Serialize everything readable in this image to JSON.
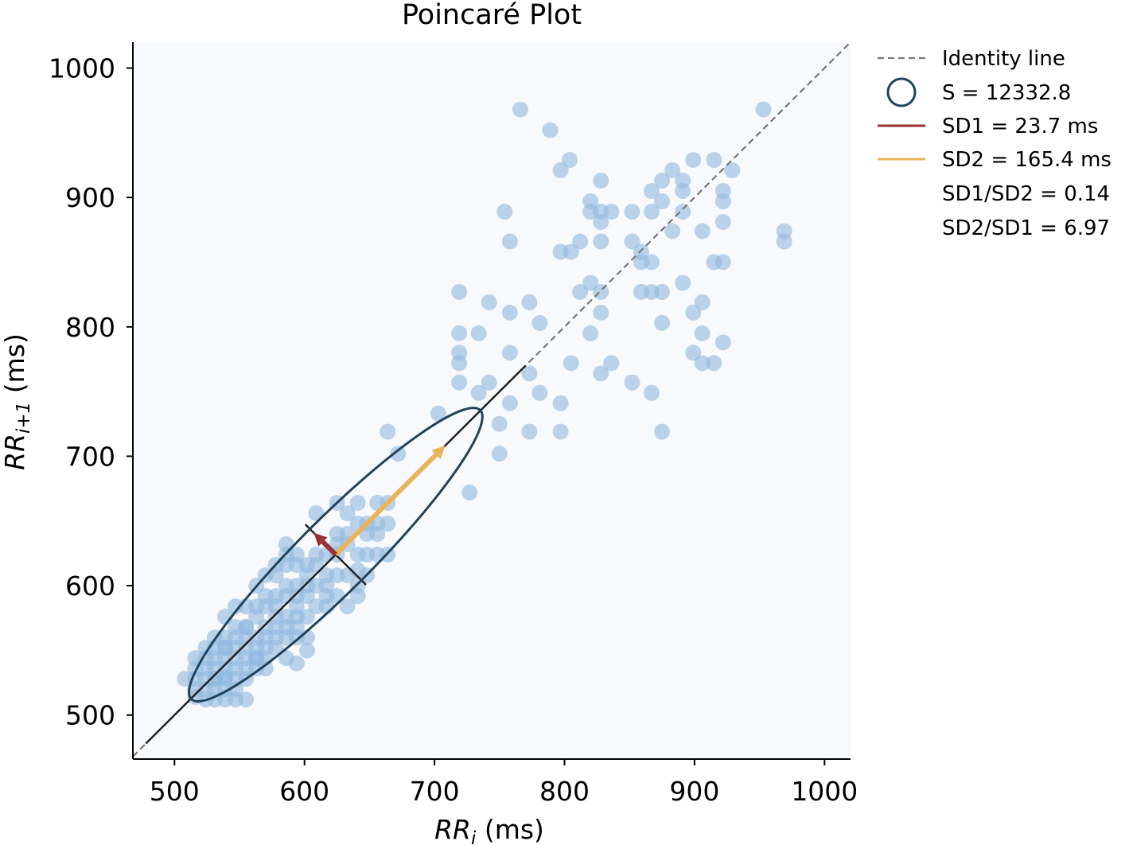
{
  "chart_data": {
    "type": "scatter",
    "title": "Poincaré Plot",
    "xlabel": {
      "main": "RR",
      "sub": "i",
      "unit": " (ms)"
    },
    "ylabel": {
      "main": "RR",
      "sub": "i+1",
      "unit": " (ms)"
    },
    "xlim": [
      468,
      1020
    ],
    "ylim": [
      466,
      1020
    ],
    "xticks": [
      500,
      600,
      700,
      800,
      900,
      1000
    ],
    "yticks": [
      500,
      600,
      700,
      800,
      900,
      1000
    ],
    "grid": false,
    "legend_position": "outside-right-top",
    "colors": {
      "points": "#8fb8de",
      "ellipse": "#1f4459",
      "sd1": "#9b2f33",
      "sd2": "#e8b55a",
      "axes_line": "#222222",
      "identity": "#777777",
      "plot_bg": "#f7f9fc"
    },
    "centroid": {
      "x": 624,
      "y": 624
    },
    "sd1": 23.7,
    "sd2": 165.4,
    "ellipse_area": 12332.8,
    "legend": [
      {
        "kind": "dashed",
        "label": "Identity line"
      },
      {
        "kind": "circle",
        "label": "S = 12332.8"
      },
      {
        "kind": "line-sd1",
        "label": "SD1 = 23.7 ms"
      },
      {
        "kind": "line-sd2",
        "label": "SD2 = 165.4 ms"
      },
      {
        "kind": "none",
        "label": "SD1/SD2 = 0.14"
      },
      {
        "kind": "none",
        "label": "SD2/SD1 = 6.97"
      }
    ],
    "points": [
      [
        766,
        968
      ],
      [
        953,
        968
      ],
      [
        789,
        952
      ],
      [
        797,
        921
      ],
      [
        804,
        929
      ],
      [
        899,
        929
      ],
      [
        915,
        929
      ],
      [
        929,
        921
      ],
      [
        883,
        921
      ],
      [
        875,
        913
      ],
      [
        828,
        913
      ],
      [
        891,
        913
      ],
      [
        867,
        905
      ],
      [
        891,
        905
      ],
      [
        922,
        905
      ],
      [
        820,
        897
      ],
      [
        875,
        897
      ],
      [
        922,
        897
      ],
      [
        828,
        889
      ],
      [
        836,
        889
      ],
      [
        852,
        889
      ],
      [
        867,
        889
      ],
      [
        891,
        889
      ],
      [
        820,
        889
      ],
      [
        754,
        889
      ],
      [
        922,
        881
      ],
      [
        828,
        881
      ],
      [
        852,
        866
      ],
      [
        883,
        874
      ],
      [
        906,
        874
      ],
      [
        969,
        874
      ],
      [
        758,
        866
      ],
      [
        812,
        866
      ],
      [
        828,
        866
      ],
      [
        969,
        866
      ],
      [
        797,
        858
      ],
      [
        805,
        858
      ],
      [
        859,
        858
      ],
      [
        859,
        850
      ],
      [
        867,
        850
      ],
      [
        915,
        850
      ],
      [
        922,
        850
      ],
      [
        820,
        834
      ],
      [
        891,
        834
      ],
      [
        719,
        827
      ],
      [
        812,
        827
      ],
      [
        828,
        827
      ],
      [
        859,
        827
      ],
      [
        867,
        827
      ],
      [
        875,
        827
      ],
      [
        742,
        819
      ],
      [
        773,
        819
      ],
      [
        906,
        819
      ],
      [
        758,
        811
      ],
      [
        828,
        811
      ],
      [
        899,
        811
      ],
      [
        781,
        803
      ],
      [
        875,
        803
      ],
      [
        719,
        795
      ],
      [
        734,
        795
      ],
      [
        820,
        795
      ],
      [
        906,
        795
      ],
      [
        719,
        780
      ],
      [
        758,
        780
      ],
      [
        899,
        780
      ],
      [
        719,
        772
      ],
      [
        805,
        772
      ],
      [
        836,
        772
      ],
      [
        906,
        772
      ],
      [
        915,
        772
      ],
      [
        922,
        788
      ],
      [
        773,
        764
      ],
      [
        828,
        764
      ],
      [
        719,
        757
      ],
      [
        742,
        757
      ],
      [
        852,
        757
      ],
      [
        734,
        749
      ],
      [
        781,
        749
      ],
      [
        867,
        749
      ],
      [
        758,
        741
      ],
      [
        797,
        741
      ],
      [
        703,
        733
      ],
      [
        750,
        725
      ],
      [
        773,
        719
      ],
      [
        797,
        719
      ],
      [
        875,
        719
      ],
      [
        664,
        719
      ],
      [
        672,
        702
      ],
      [
        750,
        702
      ],
      [
        727,
        672
      ],
      [
        609,
        656
      ],
      [
        625,
        664
      ],
      [
        641,
        664
      ],
      [
        656,
        664
      ],
      [
        664,
        664
      ],
      [
        633,
        656
      ],
      [
        641,
        648
      ],
      [
        648,
        648
      ],
      [
        656,
        648
      ],
      [
        664,
        648
      ],
      [
        625,
        640
      ],
      [
        633,
        640
      ],
      [
        656,
        640
      ],
      [
        625,
        632
      ],
      [
        633,
        632
      ],
      [
        617,
        624
      ],
      [
        625,
        624
      ],
      [
        641,
        624
      ],
      [
        648,
        624
      ],
      [
        664,
        624
      ],
      [
        586,
        632
      ],
      [
        594,
        624
      ],
      [
        609,
        624
      ],
      [
        578,
        616
      ],
      [
        586,
        616
      ],
      [
        594,
        616
      ],
      [
        602,
        616
      ],
      [
        609,
        616
      ],
      [
        617,
        608
      ],
      [
        625,
        608
      ],
      [
        633,
        608
      ],
      [
        641,
        600
      ],
      [
        648,
        608
      ],
      [
        570,
        608
      ],
      [
        578,
        608
      ],
      [
        586,
        600
      ],
      [
        594,
        600
      ],
      [
        602,
        600
      ],
      [
        609,
        600
      ],
      [
        563,
        600
      ],
      [
        570,
        592
      ],
      [
        578,
        592
      ],
      [
        586,
        592
      ],
      [
        594,
        592
      ],
      [
        602,
        592
      ],
      [
        609,
        584
      ],
      [
        617,
        584
      ],
      [
        625,
        592
      ],
      [
        641,
        592
      ],
      [
        633,
        584
      ],
      [
        547,
        584
      ],
      [
        555,
        584
      ],
      [
        563,
        584
      ],
      [
        570,
        584
      ],
      [
        578,
        576
      ],
      [
        586,
        576
      ],
      [
        594,
        576
      ],
      [
        602,
        576
      ],
      [
        539,
        576
      ],
      [
        547,
        568
      ],
      [
        555,
        568
      ],
      [
        563,
        576
      ],
      [
        570,
        568
      ],
      [
        578,
        568
      ],
      [
        586,
        568
      ],
      [
        594,
        568
      ],
      [
        531,
        560
      ],
      [
        539,
        560
      ],
      [
        547,
        560
      ],
      [
        555,
        560
      ],
      [
        563,
        560
      ],
      [
        570,
        560
      ],
      [
        578,
        560
      ],
      [
        586,
        560
      ],
      [
        594,
        560
      ],
      [
        602,
        560
      ],
      [
        524,
        552
      ],
      [
        531,
        552
      ],
      [
        539,
        552
      ],
      [
        547,
        552
      ],
      [
        555,
        552
      ],
      [
        563,
        552
      ],
      [
        570,
        552
      ],
      [
        578,
        552
      ],
      [
        586,
        544
      ],
      [
        516,
        544
      ],
      [
        524,
        544
      ],
      [
        531,
        544
      ],
      [
        539,
        544
      ],
      [
        547,
        544
      ],
      [
        555,
        544
      ],
      [
        563,
        544
      ],
      [
        570,
        544
      ],
      [
        516,
        536
      ],
      [
        524,
        536
      ],
      [
        531,
        536
      ],
      [
        539,
        536
      ],
      [
        547,
        536
      ],
      [
        555,
        536
      ],
      [
        563,
        536
      ],
      [
        508,
        528
      ],
      [
        516,
        528
      ],
      [
        524,
        528
      ],
      [
        531,
        528
      ],
      [
        539,
        528
      ],
      [
        547,
        528
      ],
      [
        555,
        528
      ],
      [
        516,
        520
      ],
      [
        524,
        520
      ],
      [
        531,
        520
      ],
      [
        539,
        520
      ],
      [
        547,
        520
      ],
      [
        524,
        512
      ],
      [
        531,
        512
      ],
      [
        539,
        512
      ],
      [
        547,
        512
      ],
      [
        555,
        512
      ],
      [
        516,
        514
      ],
      [
        539,
        530
      ],
      [
        570,
        536
      ],
      [
        594,
        540
      ],
      [
        602,
        550
      ],
      [
        563,
        544
      ],
      [
        578,
        584
      ],
      [
        594,
        584
      ],
      [
        602,
        608
      ],
      [
        617,
        600
      ],
      [
        641,
        612
      ],
      [
        586,
        624
      ],
      [
        656,
        624
      ],
      [
        648,
        640
      ],
      [
        617,
        592
      ],
      [
        555,
        568
      ],
      [
        539,
        552
      ],
      [
        531,
        528
      ]
    ]
  }
}
